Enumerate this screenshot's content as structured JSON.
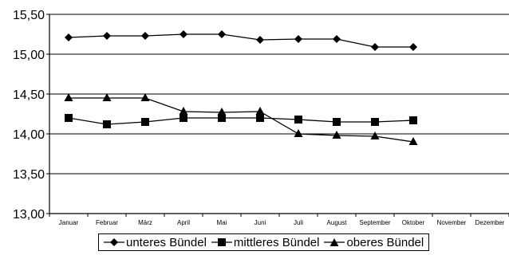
{
  "chart_data": {
    "type": "line",
    "categories": [
      "Januar",
      "Februar",
      "März",
      "April",
      "Mai",
      "Juni",
      "Juli",
      "August",
      "September",
      "Oktober",
      "November",
      "Dezember"
    ],
    "ylim": [
      13.0,
      15.5
    ],
    "yticks": [
      "13,00",
      "13,50",
      "14,00",
      "14,50",
      "15,00",
      "15,50"
    ],
    "ytick_values": [
      13.0,
      13.5,
      14.0,
      14.5,
      15.0,
      15.5
    ],
    "grid": true,
    "legend_position": "bottom",
    "series": [
      {
        "name": "unteres Bündel",
        "marker": "diamond",
        "values": [
          15.21,
          15.23,
          15.23,
          15.25,
          15.25,
          15.18,
          15.19,
          15.19,
          15.09,
          15.09,
          null,
          null
        ]
      },
      {
        "name": "mittleres Bündel",
        "marker": "square",
        "values": [
          14.2,
          14.12,
          14.15,
          14.2,
          14.2,
          14.2,
          14.18,
          14.15,
          14.15,
          14.17,
          null,
          null
        ]
      },
      {
        "name": "oberes Bündel",
        "marker": "triangle",
        "values": [
          14.45,
          14.45,
          14.45,
          14.28,
          14.27,
          14.28,
          14.0,
          13.98,
          13.97,
          13.9,
          null,
          null
        ]
      }
    ],
    "colors": {
      "line": "#000000",
      "grid": "#000000",
      "background": "#ffffff"
    }
  }
}
